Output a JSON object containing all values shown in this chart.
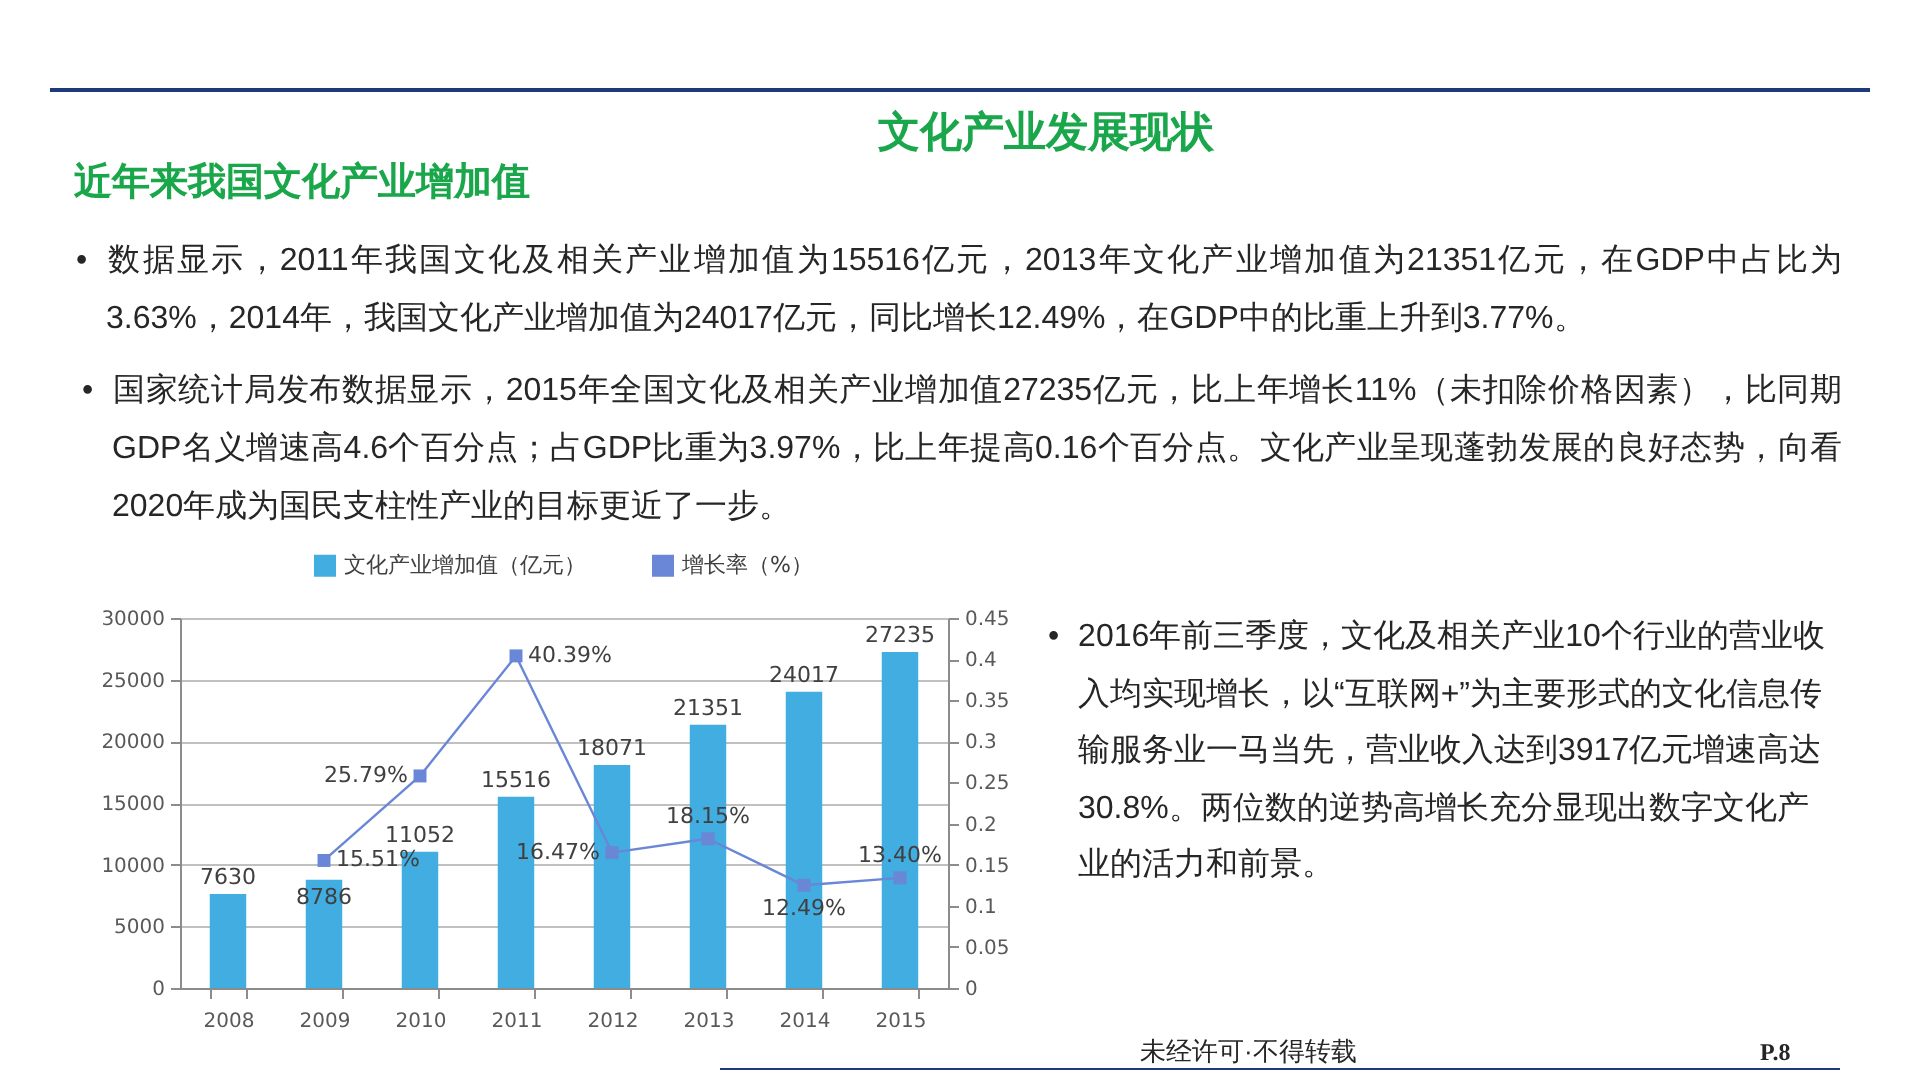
{
  "chart_data": {
    "type": "bar",
    "title": "文化产业发展现状",
    "subtitle": "近年来我国文化产业增加值",
    "categories": [
      "2008",
      "2009",
      "2010",
      "2011",
      "2012",
      "2013",
      "2014",
      "2015"
    ],
    "series": [
      {
        "name": "文化产业增加值（亿元）",
        "color": "#41ade1",
        "values": [
          7630,
          8786,
          11052,
          15516,
          18071,
          21351,
          24017,
          27235
        ],
        "value_labels": [
          "7630",
          "8786",
          "11052",
          "15516",
          "18071",
          "21351",
          "24017",
          "27235"
        ]
      },
      {
        "name": "增长率（%）",
        "type": "line",
        "axis": "y2",
        "color": "#6a86d6",
        "values": [
          null,
          0.1551,
          0.2579,
          0.4039,
          0.1647,
          0.1815,
          0.1249,
          0.134
        ],
        "value_labels": [
          null,
          "15.51%",
          "25.79%",
          "40.39%",
          "16.47%",
          "18.15%",
          "12.49%",
          "13.40%"
        ]
      }
    ],
    "ylim": [
      0,
      30000
    ],
    "yticks": [
      0,
      5000,
      10000,
      15000,
      20000,
      25000,
      30000
    ],
    "y2lim": [
      0,
      0.45
    ],
    "y2ticks": [
      0,
      0.05,
      0.1,
      0.15,
      0.2,
      0.25,
      0.3,
      0.35,
      0.4,
      0.45
    ],
    "grid": "y",
    "legend": "top",
    "marker": "square",
    "annotations": [
      "• 数据显示，2011年我国文化及相关产业增加值为15516亿元，2013年文化产业增加值为21351亿元，在GDP中占比为3.63%，2014年，我国文化产业增加值为24017亿元，同比增长12.49%，在GDP中的比重上升到3.77%。",
      "• 国家统计局发布数据显示，2015年全国文化及相关产业增加值27235亿元，比上年增长11%（未扣除价格因素），比同期GDP名义增速高4.6个百分点；占GDP比重为3.97%，比上年提高0.16个百分点。文化产业呈现蓬勃发展的良好态势，向看2020年成为国民支柱性产业的目标更近了一步。",
      "• 2016年前三季度，文化及相关产业10个行业的营业收入均实现增长，以“互联网+”为主要形式的文化信息传输服务业一马当先，营业收入达到3917亿元增速高达30.8%。两位数的逆势高增长充分显现出数字文化产业的活力和前景。",
      "未经许可·不得转载",
      "P.8"
    ]
  }
}
